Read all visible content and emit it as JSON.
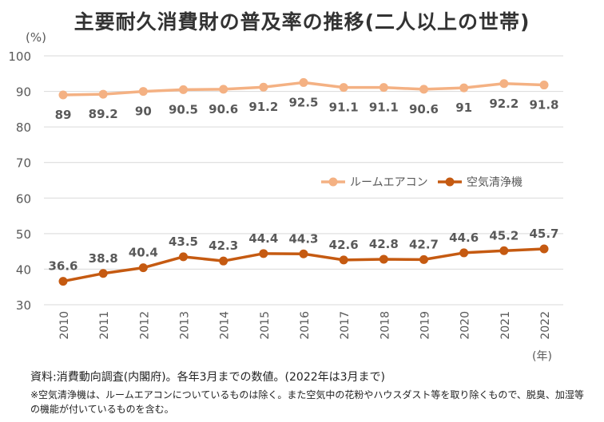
{
  "title": "主要耐久消費財の普及率の推移(二人以上の世帯)",
  "footnote": {
    "source": "資料:消費動向調査(内閣府)。各年3月までの数値。(2022年は3月まで)",
    "note": "※空気清浄機は、ルームエアコンについているものは除く。また空気中の花粉やハウスダスト等を取り除くもので、脱臭、加湿等の機能が付いているものを含む。"
  },
  "colors": {
    "aircon": "#f4b183",
    "purifier": "#c55a11",
    "grid": "#d9d9d9",
    "label": "#595959",
    "axis": "#bfbfbf"
  },
  "chart_data": {
    "type": "line",
    "title": "主要耐久消費財の普及率の推移(二人以上の世帯)",
    "xlabel": "(年)",
    "ylabel": "(%)",
    "ylim": [
      30,
      100
    ],
    "yticks": [
      30,
      40,
      50,
      60,
      70,
      80,
      90,
      100
    ],
    "grid": true,
    "legend_position": "center-right",
    "categories": [
      "2010",
      "2011",
      "2012",
      "2013",
      "2014",
      "2015",
      "2016",
      "2017",
      "2018",
      "2019",
      "2020",
      "2021",
      "2022"
    ],
    "series": [
      {
        "name": "ルームエアコン",
        "values": [
          89,
          89.2,
          90,
          90.5,
          90.6,
          91.2,
          92.5,
          91.1,
          91.1,
          90.6,
          91,
          92.2,
          91.8
        ],
        "labels": [
          "89",
          "89.2",
          "90",
          "90.5",
          "90.6",
          "91.2",
          "92.5",
          "91.1",
          "91.1",
          "90.6",
          "91",
          "92.2",
          "91.8"
        ]
      },
      {
        "name": "空気清浄機",
        "values": [
          36.6,
          38.8,
          40.4,
          43.5,
          42.3,
          44.4,
          44.3,
          42.6,
          42.8,
          42.7,
          44.6,
          45.2,
          45.7
        ],
        "labels": [
          "36.6",
          "38.8",
          "40.4",
          "43.5",
          "42.3",
          "44.4",
          "44.3",
          "42.6",
          "42.8",
          "42.7",
          "44.6",
          "45.2",
          "45.7"
        ]
      }
    ]
  }
}
